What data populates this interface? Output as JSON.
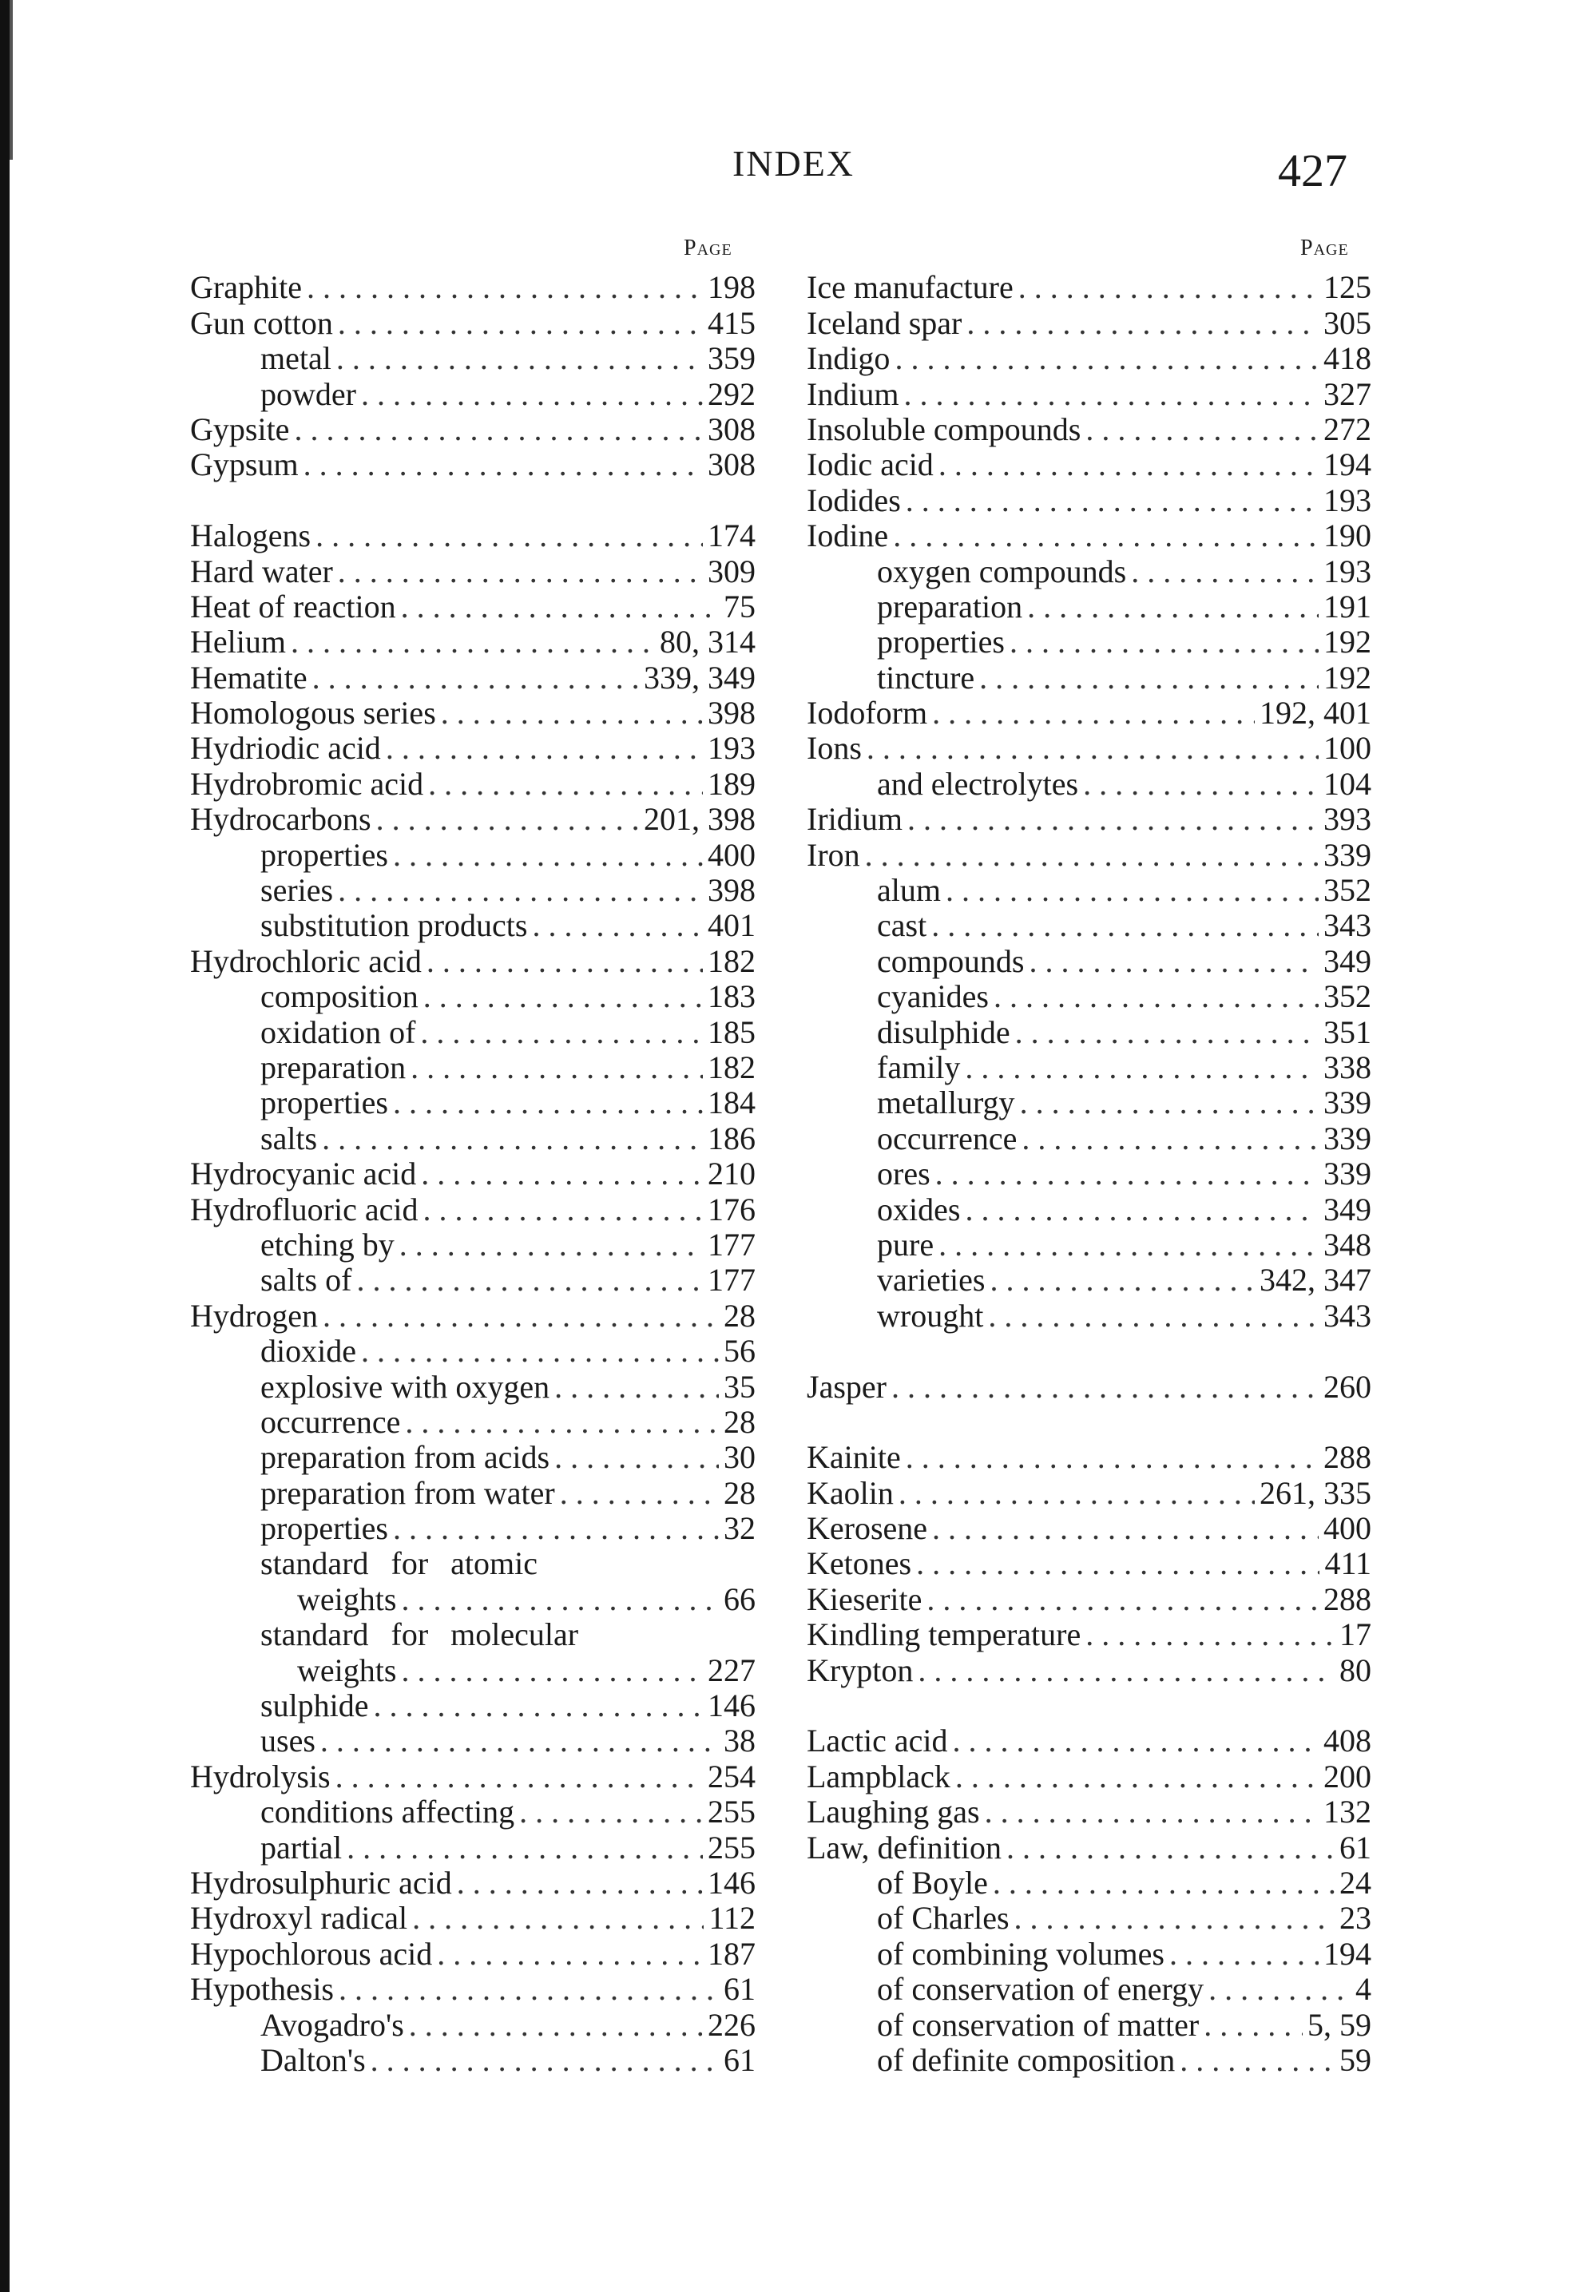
{
  "header": {
    "title": "INDEX",
    "page_number": "427"
  },
  "columns": [
    {
      "page_label": "Page",
      "entries": [
        {
          "term": "Graphite",
          "pages": "198",
          "level": 0
        },
        {
          "term": "Gun cotton",
          "pages": "415",
          "level": 0
        },
        {
          "term": "metal",
          "pages": "359",
          "level": 1
        },
        {
          "term": "powder",
          "pages": "292",
          "level": 1
        },
        {
          "term": "Gypsite",
          "pages": "308",
          "level": 0
        },
        {
          "term": "Gypsum",
          "pages": "308",
          "level": 0
        },
        null,
        {
          "term": "Halogens",
          "pages": "174",
          "level": 0
        },
        {
          "term": "Hard water",
          "pages": "309",
          "level": 0
        },
        {
          "term": "Heat of reaction",
          "pages": "75",
          "level": 0
        },
        {
          "term": "Helium",
          "pages": "80, 314",
          "level": 0
        },
        {
          "term": "Hematite",
          "pages": "339, 349",
          "level": 0
        },
        {
          "term": "Homologous series",
          "pages": "398",
          "level": 0
        },
        {
          "term": "Hydriodic acid",
          "pages": "193",
          "level": 0
        },
        {
          "term": "Hydrobromic acid",
          "pages": "189",
          "level": 0
        },
        {
          "term": "Hydrocarbons",
          "pages": "201, 398",
          "level": 0
        },
        {
          "term": "properties",
          "pages": "400",
          "level": 1
        },
        {
          "term": "series",
          "pages": "398",
          "level": 1
        },
        {
          "term": "substitution products",
          "pages": "401",
          "level": 1
        },
        {
          "term": "Hydrochloric acid",
          "pages": "182",
          "level": 0
        },
        {
          "term": "composition",
          "pages": "183",
          "level": 1
        },
        {
          "term": "oxidation of",
          "pages": "185",
          "level": 1
        },
        {
          "term": "preparation",
          "pages": "182",
          "level": 1
        },
        {
          "term": "properties",
          "pages": "184",
          "level": 1
        },
        {
          "term": "salts",
          "pages": "186",
          "level": 1
        },
        {
          "term": "Hydrocyanic acid",
          "pages": "210",
          "level": 0
        },
        {
          "term": "Hydrofluoric acid",
          "pages": "176",
          "level": 0
        },
        {
          "term": "etching by",
          "pages": "177",
          "level": 1
        },
        {
          "term": "salts of",
          "pages": "177",
          "level": 1
        },
        {
          "term": "Hydrogen",
          "pages": "28",
          "level": 0
        },
        {
          "term": "dioxide",
          "pages": "56",
          "level": 1
        },
        {
          "term": "explosive with oxygen",
          "pages": "35",
          "level": 1
        },
        {
          "term": "occurrence",
          "pages": "28",
          "level": 1
        },
        {
          "term": "preparation from acids",
          "pages": "30",
          "level": 1
        },
        {
          "term": "preparation from water",
          "pages": "28",
          "level": 1
        },
        {
          "term": "properties",
          "pages": "32",
          "level": 1
        },
        {
          "term": "standard    for    atomic",
          "pages": "",
          "level": 1
        },
        {
          "term": "weights",
          "pages": "66",
          "level": 2
        },
        {
          "term": "standard   for   molecular",
          "pages": "",
          "level": 1
        },
        {
          "term": "weights",
          "pages": "227",
          "level": 2
        },
        {
          "term": "sulphide",
          "pages": "146",
          "level": 1
        },
        {
          "term": "uses",
          "pages": "38",
          "level": 1
        },
        {
          "term": "Hydrolysis",
          "pages": "254",
          "level": 0
        },
        {
          "term": "conditions affecting",
          "pages": "255",
          "level": 1
        },
        {
          "term": "partial",
          "pages": "255",
          "level": 1
        },
        {
          "term": "Hydrosulphuric acid",
          "pages": "146",
          "level": 0
        },
        {
          "term": "Hydroxyl radical",
          "pages": "112",
          "level": 0
        },
        {
          "term": "Hypochlorous acid",
          "pages": "187",
          "level": 0
        },
        {
          "term": "Hypothesis",
          "pages": "61",
          "level": 0
        },
        {
          "term": "Avogadro's",
          "pages": "226",
          "level": 1
        },
        {
          "term": "Dalton's",
          "pages": "61",
          "level": 1
        }
      ]
    },
    {
      "page_label": "Page",
      "entries": [
        {
          "term": "Ice manufacture",
          "pages": "125",
          "level": 0
        },
        {
          "term": "Iceland spar",
          "pages": "305",
          "level": 0
        },
        {
          "term": "Indigo",
          "pages": "418",
          "level": 0
        },
        {
          "term": "Indium",
          "pages": "327",
          "level": 0
        },
        {
          "term": "Insoluble compounds",
          "pages": "272",
          "level": 0
        },
        {
          "term": "Iodic acid",
          "pages": "194",
          "level": 0
        },
        {
          "term": "Iodides",
          "pages": "193",
          "level": 0
        },
        {
          "term": "Iodine",
          "pages": "190",
          "level": 0
        },
        {
          "term": "oxygen compounds",
          "pages": "193",
          "level": 1
        },
        {
          "term": "preparation",
          "pages": "191",
          "level": 1
        },
        {
          "term": "properties",
          "pages": "192",
          "level": 1
        },
        {
          "term": "tincture",
          "pages": "192",
          "level": 1
        },
        {
          "term": "Iodoform",
          "pages": "192, 401",
          "level": 0
        },
        {
          "term": "Ions",
          "pages": "100",
          "level": 0
        },
        {
          "term": "and electrolytes",
          "pages": "104",
          "level": 1
        },
        {
          "term": "Iridium",
          "pages": "393",
          "level": 0
        },
        {
          "term": "Iron",
          "pages": "339",
          "level": 0
        },
        {
          "term": "alum",
          "pages": "352",
          "level": 1
        },
        {
          "term": "cast",
          "pages": "343",
          "level": 1
        },
        {
          "term": "compounds",
          "pages": "349",
          "level": 1
        },
        {
          "term": "cyanides",
          "pages": "352",
          "level": 1
        },
        {
          "term": "disulphide",
          "pages": "351",
          "level": 1
        },
        {
          "term": "family",
          "pages": "338",
          "level": 1
        },
        {
          "term": "metallurgy",
          "pages": "339",
          "level": 1
        },
        {
          "term": "occurrence",
          "pages": "339",
          "level": 1
        },
        {
          "term": "ores",
          "pages": "339",
          "level": 1
        },
        {
          "term": "oxides",
          "pages": "349",
          "level": 1
        },
        {
          "term": "pure",
          "pages": "348",
          "level": 1
        },
        {
          "term": "varieties",
          "pages": "342, 347",
          "level": 1
        },
        {
          "term": "wrought",
          "pages": "343",
          "level": 1
        },
        null,
        {
          "term": "Jasper",
          "pages": "260",
          "level": 0
        },
        null,
        {
          "term": "Kainite",
          "pages": "288",
          "level": 0
        },
        {
          "term": "Kaolin",
          "pages": "261, 335",
          "level": 0
        },
        {
          "term": "Kerosene",
          "pages": "400",
          "level": 0
        },
        {
          "term": "Ketones",
          "pages": "411",
          "level": 0
        },
        {
          "term": "Kieserite",
          "pages": "288",
          "level": 0
        },
        {
          "term": "Kindling temperature",
          "pages": "17",
          "level": 0
        },
        {
          "term": "Krypton",
          "pages": "80",
          "level": 0
        },
        null,
        {
          "term": "Lactic acid",
          "pages": "408",
          "level": 0
        },
        {
          "term": "Lampblack",
          "pages": "200",
          "level": 0
        },
        {
          "term": "Laughing gas",
          "pages": "132",
          "level": 0
        },
        {
          "term": "Law, definition",
          "pages": "61",
          "level": 0
        },
        {
          "term": "of Boyle",
          "pages": "24",
          "level": 1
        },
        {
          "term": "of Charles",
          "pages": "23",
          "level": 1
        },
        {
          "term": "of combining volumes",
          "pages": "194",
          "level": 1
        },
        {
          "term": "of conservation of energy",
          "pages": "4",
          "level": 1
        },
        {
          "term": "of conservation of matter",
          "pages": "5, 59",
          "level": 1
        },
        {
          "term": "of definite composition",
          "pages": "59",
          "level": 1
        }
      ]
    }
  ]
}
